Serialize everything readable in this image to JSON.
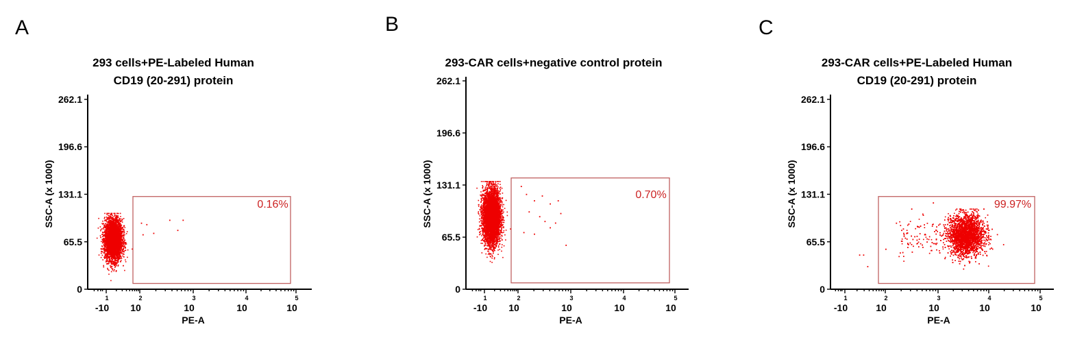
{
  "colors": {
    "dots": "#ee0000",
    "gate": "#c06060",
    "percent": "#cc2222",
    "axis": "#000000"
  },
  "chart_data": [
    {
      "type": "scatter",
      "panel_label": "A",
      "title_lines": [
        "293 cells+PE-Labeled Human",
        "CD19 (20-291) protein"
      ],
      "xlabel": "PE-A",
      "ylabel": "SSC-A (x 1000)",
      "x_scale": "log",
      "x_tick_labels": [
        {
          "base": "-10",
          "exp": "1"
        },
        {
          "base": "10",
          "exp": "2"
        },
        {
          "base": "10",
          "exp": "3"
        },
        {
          "base": "10",
          "exp": "4"
        },
        {
          "base": "10",
          "exp": "5"
        }
      ],
      "y_ticks": [
        "0",
        "65.5",
        "131.1",
        "196.6",
        "262.1"
      ],
      "ylim": [
        0,
        262.1
      ],
      "gate": {
        "x_from": 100,
        "x_to": 100000,
        "y_from": 8,
        "y_to": 128
      },
      "gate_percent": "0.16%",
      "population": {
        "center_log_x": 1.2,
        "center_y": 69,
        "count": 4200
      },
      "outliers": [
        [
          2.02,
          92
        ],
        [
          2.12,
          90
        ],
        [
          2.55,
          96
        ],
        [
          2.8,
          96
        ],
        [
          2.25,
          78
        ],
        [
          2.05,
          76
        ],
        [
          2.7,
          82
        ]
      ]
    },
    {
      "type": "scatter",
      "panel_label": "B",
      "title_lines": [
        "293-CAR cells+negative control protein"
      ],
      "xlabel": "PE-A",
      "ylabel": "SSC-A (x 1000)",
      "x_scale": "log",
      "x_tick_labels": [
        {
          "base": "-10",
          "exp": "1"
        },
        {
          "base": "10",
          "exp": "2"
        },
        {
          "base": "10",
          "exp": "3"
        },
        {
          "base": "10",
          "exp": "4"
        },
        {
          "base": "10",
          "exp": "5"
        }
      ],
      "y_ticks": [
        "0",
        "65.5",
        "131.1",
        "196.6",
        "262.1"
      ],
      "ylim": [
        0,
        262.1
      ],
      "gate": {
        "x_from": 100,
        "x_to": 100000,
        "y_from": 8,
        "y_to": 140
      },
      "gate_percent": "0.70%",
      "population": {
        "center_log_x": 1.2,
        "center_y": 92,
        "count": 5200
      },
      "outliers": [
        [
          2.05,
          130
        ],
        [
          2.15,
          120
        ],
        [
          2.3,
          112
        ],
        [
          2.45,
          118
        ],
        [
          2.6,
          108
        ],
        [
          2.2,
          98
        ],
        [
          2.4,
          92
        ],
        [
          2.5,
          86
        ],
        [
          2.7,
          84
        ],
        [
          2.8,
          96
        ],
        [
          2.6,
          78
        ],
        [
          2.3,
          70
        ],
        [
          2.9,
          56
        ],
        [
          2.1,
          72
        ],
        [
          2.75,
          112
        ]
      ]
    },
    {
      "type": "scatter",
      "panel_label": "C",
      "title_lines": [
        "293-CAR cells+PE-Labeled Human",
        "CD19 (20-291) protein"
      ],
      "xlabel": "PE-A",
      "ylabel": "SSC-A (x 1000)",
      "x_scale": "log",
      "x_tick_labels": [
        {
          "base": "-10",
          "exp": "1"
        },
        {
          "base": "10",
          "exp": "2"
        },
        {
          "base": "10",
          "exp": "3"
        },
        {
          "base": "10",
          "exp": "4"
        },
        {
          "base": "10",
          "exp": "5"
        }
      ],
      "y_ticks": [
        "0",
        "65.5",
        "131.1",
        "196.6",
        "262.1"
      ],
      "ylim": [
        0,
        262.1
      ],
      "gate": {
        "x_from": 100,
        "x_to": 100000,
        "y_from": 8,
        "y_to": 128
      },
      "gate_percent": "99.97%",
      "population": {
        "center_log_x": 3.55,
        "center_y": 75,
        "count": 5200
      },
      "outliers": [
        [
          1.35,
          48
        ],
        [
          1.45,
          48
        ],
        [
          1.55,
          32
        ],
        [
          2.2,
          92
        ],
        [
          2.3,
          82
        ],
        [
          2.4,
          70
        ],
        [
          2.6,
          64
        ],
        [
          2.5,
          52
        ],
        [
          2.75,
          76
        ],
        [
          2.9,
          120
        ],
        [
          2.0,
          56
        ],
        [
          2.85,
          60
        ]
      ]
    }
  ]
}
